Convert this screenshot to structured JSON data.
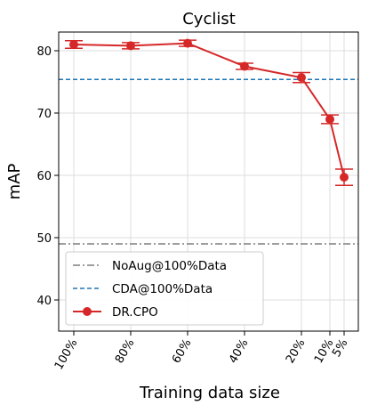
{
  "chart_data": {
    "type": "line",
    "title": "Cyclist",
    "xlabel": "Training data size",
    "ylabel": "mAP",
    "x": [
      100,
      80,
      60,
      40,
      20,
      10,
      5
    ],
    "x_tick_labels": [
      "100%",
      "80%",
      "60%",
      "40%",
      "20%",
      "10%",
      "5%"
    ],
    "x_order": "descending",
    "ylim": [
      35,
      83
    ],
    "y_ticks": [
      40,
      50,
      60,
      70,
      80
    ],
    "grid": true,
    "legend_position": "bottom-left",
    "series": [
      {
        "name": "DR.CPO",
        "color": "#d62728",
        "style": "solid-line-with-markers",
        "values": [
          81.0,
          80.8,
          81.2,
          77.5,
          75.7,
          69.0,
          59.7
        ],
        "error": [
          0.6,
          0.5,
          0.5,
          0.5,
          0.8,
          0.7,
          1.3
        ]
      }
    ],
    "reference_lines": [
      {
        "name": "NoAug@100%Data",
        "value": 49.0,
        "color": "#7f7f7f",
        "style": "dash-dot"
      },
      {
        "name": "CDA@100%Data",
        "value": 75.4,
        "color": "#1f77b4",
        "style": "dashed"
      }
    ]
  }
}
